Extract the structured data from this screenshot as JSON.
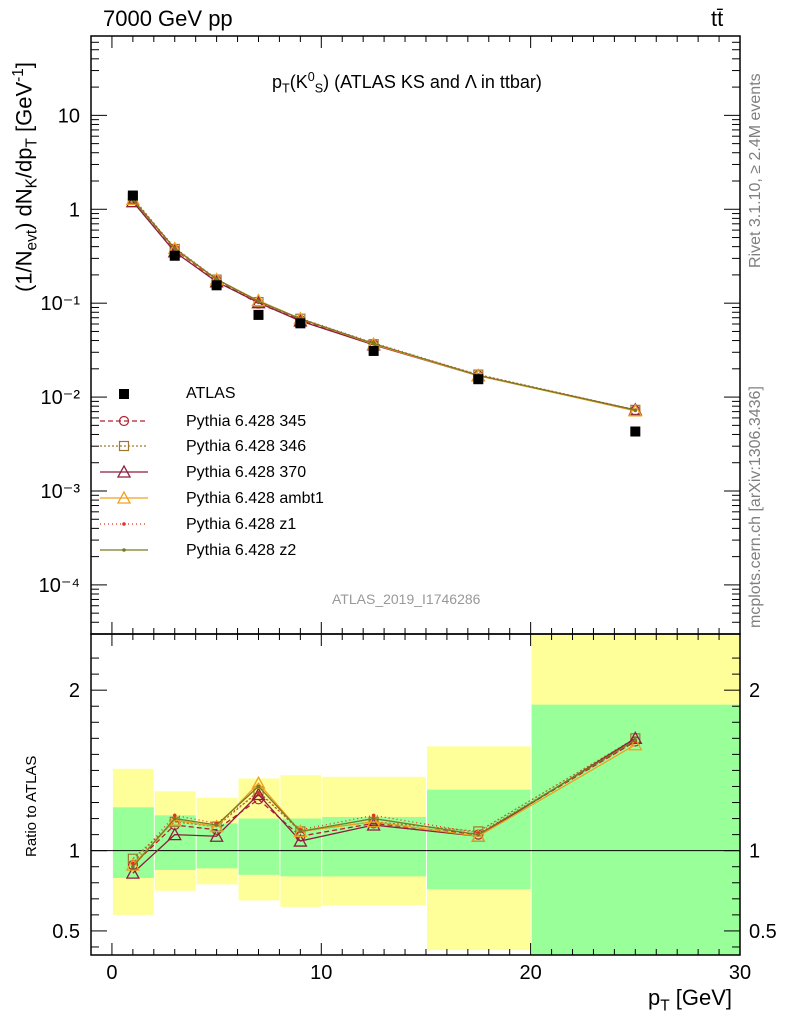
{
  "header": {
    "left": "7000 GeV pp",
    "right": "tt̄"
  },
  "side_text": {
    "top": "Rivet 3.1.10, ≥ 2.4M events",
    "bottom": "mcplots.cern.ch [arXiv:1306.3436]"
  },
  "analysis_label": "ATLAS_2019_I1746286",
  "plot_title": {
    "main": "p",
    "sub1": "T",
    "paren_open": "(K",
    "sup": "0",
    "sub2": "S",
    "paren_close": ")",
    "rest": " (ATLAS KS and Λ in ttbar)"
  },
  "y_title": {
    "a": "(1/N",
    "b": "evt",
    "c": ") dN",
    "d": "K",
    "e": "/dp",
    "f": "T",
    "g": " [GeV",
    "h": "-1",
    "i": "]"
  },
  "ratio_title": "Ratio to ATLAS",
  "x_title": {
    "a": "p",
    "b": "T",
    "c": " [GeV]"
  },
  "chart_data": {
    "type": "scatter",
    "x_range": [
      -1,
      30
    ],
    "main_y_range": [
      3e-05,
      70
    ],
    "main_y_scale": "log",
    "ratio_y_range": [
      0.35,
      2.35
    ],
    "x_ticks": [
      "0",
      "10",
      "20",
      "30"
    ],
    "main_y_ticks": [
      "10⁻⁴",
      "10⁻³",
      "10⁻²",
      "10⁻¹",
      "1",
      "10"
    ],
    "ratio_y_ticks": [
      "0.5",
      "1",
      "2"
    ],
    "bins": [
      [
        0,
        2
      ],
      [
        2,
        4
      ],
      [
        4,
        6
      ],
      [
        6,
        8
      ],
      [
        8,
        10
      ],
      [
        10,
        15
      ],
      [
        15,
        20
      ],
      [
        20,
        30
      ]
    ],
    "x": [
      1,
      3,
      5,
      7,
      9,
      12.5,
      17.5,
      25
    ],
    "data": {
      "name": "ATLAS",
      "values": [
        1.4,
        0.32,
        0.155,
        0.075,
        0.061,
        0.031,
        0.0155,
        0.0043
      ]
    },
    "band_inner": [
      [
        0.83,
        1.27
      ],
      [
        0.88,
        1.22
      ],
      [
        0.89,
        1.17
      ],
      [
        0.85,
        1.2
      ],
      [
        0.84,
        1.2
      ],
      [
        0.84,
        1.21
      ],
      [
        0.76,
        1.38
      ],
      [
        0.35,
        1.91
      ]
    ],
    "band_outer": [
      [
        0.6,
        1.51
      ],
      [
        0.75,
        1.37
      ],
      [
        0.79,
        1.33
      ],
      [
        0.69,
        1.45
      ],
      [
        0.65,
        1.47
      ],
      [
        0.66,
        1.46
      ],
      [
        0.38,
        1.65
      ],
      [
        0.35,
        2.35
      ]
    ],
    "series": [
      {
        "name": "Pythia 6.428 345",
        "color": "#b22230",
        "dash": "5,3",
        "marker": "circle",
        "ratio": [
          0.91,
          1.16,
          1.13,
          1.32,
          1.09,
          1.17,
          1.1,
          1.68
        ]
      },
      {
        "name": "Pythia 6.428 346",
        "color": "#a0782d",
        "dash": "2,2",
        "marker": "square",
        "ratio": [
          0.95,
          1.18,
          1.15,
          1.37,
          1.12,
          1.18,
          1.12,
          1.7
        ]
      },
      {
        "name": "Pythia 6.428 370",
        "color": "#8c1e3c",
        "dash": "",
        "marker": "triangle",
        "ratio": [
          0.86,
          1.1,
          1.09,
          1.35,
          1.06,
          1.16,
          1.09,
          1.7
        ]
      },
      {
        "name": "Pythia 6.428 ambt1",
        "color": "#f0a01e",
        "dash": "",
        "marker": "triangle",
        "ratio": [
          0.91,
          1.19,
          1.15,
          1.42,
          1.12,
          1.18,
          1.09,
          1.66
        ]
      },
      {
        "name": "Pythia 6.428 z1",
        "color": "#e03228",
        "dash": "1,3",
        "marker": "dot",
        "ratio": [
          0.92,
          1.22,
          1.17,
          1.36,
          1.13,
          1.22,
          1.11,
          1.68
        ]
      },
      {
        "name": "Pythia 6.428 z2",
        "color": "#7a7a22",
        "dash": "",
        "marker": "dot",
        "ratio": [
          0.9,
          1.2,
          1.16,
          1.4,
          1.12,
          1.2,
          1.1,
          1.69
        ]
      }
    ]
  }
}
